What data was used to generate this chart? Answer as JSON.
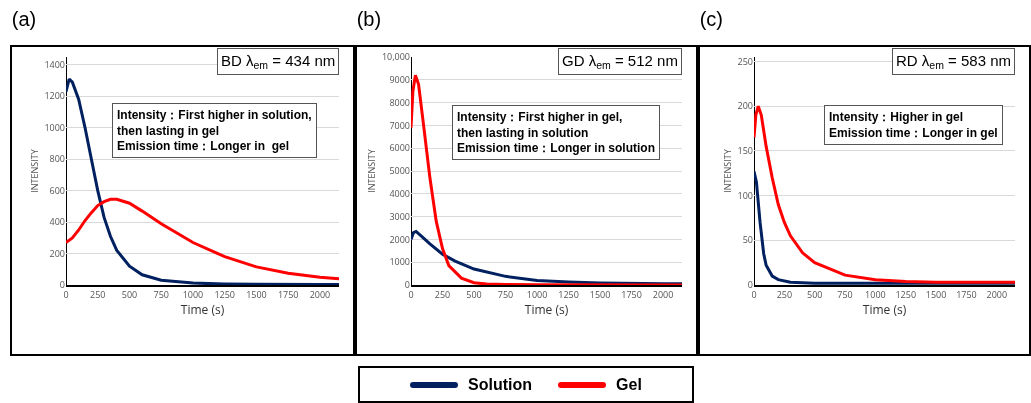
{
  "chart_data": [
    {
      "type": "line",
      "title": "(a)",
      "xlabel": "Time (s)",
      "ylabel": "INTENSITY",
      "annotations": [
        "BD λ$_{em}$ = 434 nm",
        "Intensity：First higher in solution,\nthen lasting in gel\nEmission time：Longer in  gel"
      ],
      "xlim": [
        0,
        2150
      ],
      "xticks": [
        0,
        250,
        500,
        750,
        1000,
        1250,
        1500,
        1750,
        2000
      ],
      "ylim": [
        0,
        1450
      ],
      "yticks": [
        0,
        200,
        400,
        600,
        800,
        1000,
        1200,
        1400
      ],
      "grid": "y",
      "legend": "bottom",
      "marker": "none",
      "line_style": "solid",
      "series": [
        {
          "name": "Solution",
          "color": "#002060",
          "x": [
            0,
            25,
            50,
            100,
            150,
            200,
            250,
            300,
            350,
            400,
            500,
            600,
            750,
            1000,
            1250,
            1500,
            2000,
            2150
          ],
          "values": [
            1230,
            1310,
            1290,
            1180,
            1000,
            800,
            600,
            430,
            310,
            220,
            120,
            65,
            30,
            12,
            6,
            4,
            3,
            3
          ]
        },
        {
          "name": "Gel",
          "color": "#ff0000",
          "x": [
            0,
            50,
            100,
            150,
            200,
            250,
            300,
            350,
            400,
            500,
            600,
            750,
            1000,
            1250,
            1500,
            1750,
            2000,
            2150
          ],
          "values": [
            270,
            300,
            350,
            410,
            460,
            505,
            530,
            545,
            545,
            520,
            470,
            390,
            270,
            180,
            115,
            75,
            50,
            40
          ]
        }
      ]
    },
    {
      "type": "line",
      "title": "(b)",
      "xlabel": "Time (s)",
      "ylabel": "INTENSITY",
      "annotations": [
        "GD λ$_{em}$ = 512 nm",
        "Intensity：First higher in gel,\nthen lasting in solution\nEmission time：Longer in solution"
      ],
      "xlim": [
        0,
        2150
      ],
      "xticks": [
        0,
        250,
        500,
        750,
        1000,
        1250,
        1500,
        1750,
        2000
      ],
      "ylim": [
        0,
        10000
      ],
      "yticks": [
        0,
        1000,
        2000,
        3000,
        4000,
        5000,
        6000,
        7000,
        8000,
        9000,
        {
          "value": 10000,
          "label": "10,000"
        }
      ],
      "grid": "y",
      "marker": "none",
      "line_style": "solid",
      "series": [
        {
          "color": "#002060",
          "x": [
            0,
            20,
            40,
            80,
            150,
            250,
            350,
            500,
            750,
            1000,
            1250,
            1500,
            2000,
            2150
          ],
          "values": [
            2000,
            2300,
            2350,
            2150,
            1800,
            1350,
            1050,
            700,
            380,
            200,
            130,
            90,
            60,
            50
          ]
        },
        {
          "color": "#ff0000",
          "x": [
            0,
            15,
            35,
            60,
            100,
            150,
            200,
            250,
            300,
            400,
            500,
            600,
            750,
            1000,
            2150
          ],
          "values": [
            6900,
            8500,
            9200,
            8800,
            7000,
            4700,
            2800,
            1600,
            850,
            300,
            100,
            40,
            20,
            10,
            0
          ]
        }
      ]
    },
    {
      "type": "line",
      "title": "(c)",
      "xlabel": "Time (s)",
      "ylabel": "INTENSITY",
      "annotations": [
        "RD λ$_{em}$ = 583 nm",
        "Intensity：Higher in gel\nEmission time：Longer in gel"
      ],
      "xlim": [
        0,
        2150
      ],
      "xticks": [
        0,
        250,
        500,
        750,
        1000,
        1250,
        1500,
        1750,
        2000
      ],
      "ylim": [
        0,
        255
      ],
      "yticks": [
        0,
        50,
        100,
        150,
        200,
        250
      ],
      "grid": "y",
      "marker": "none",
      "line_style": "solid",
      "series": [
        {
          "color": "#002060",
          "x": [
            0,
            20,
            50,
            80,
            100,
            150,
            200,
            300,
            500,
            1000,
            2150
          ],
          "values": [
            127,
            115,
            70,
            35,
            22,
            10,
            6,
            3,
            2,
            2,
            2
          ]
        },
        {
          "color": "#ff0000",
          "x": [
            0,
            15,
            35,
            60,
            100,
            150,
            200,
            250,
            300,
            400,
            500,
            750,
            1000,
            1250,
            1500,
            2000,
            2150
          ],
          "values": [
            165,
            190,
            200,
            190,
            155,
            120,
            90,
            70,
            55,
            36,
            25,
            11,
            6,
            4,
            3,
            3,
            3
          ]
        }
      ]
    }
  ]
}
